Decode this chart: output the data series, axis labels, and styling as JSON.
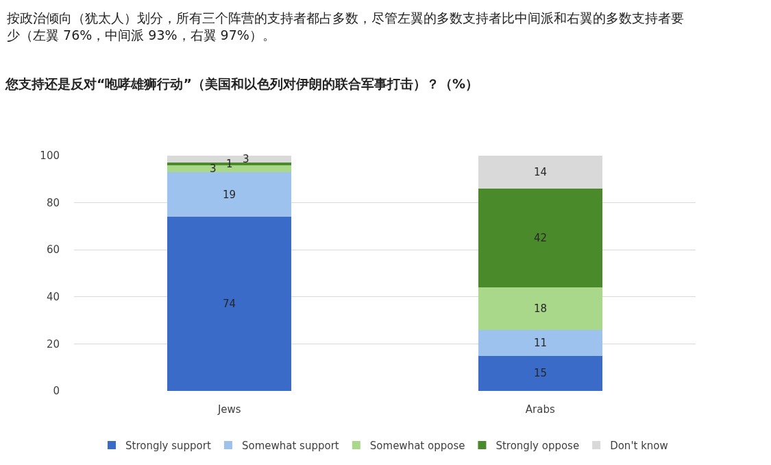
{
  "chart_data": {
    "type": "bar",
    "title": "您支持还是反对“咆哮雄狮行动”（美国和以色列对伊朗的联合军事打击）？（%）",
    "annotations": [
      "按政治倾向（犹太人）划分，所有三个阵营的支持者都占多数，尽管左翼的多数支持者比中间派和右翼的多数支持者要少（左翼 76%，中间派 93%，右翼 97%）。"
    ],
    "categories": [
      "Jews",
      "Arabs"
    ],
    "stacked": true,
    "series": [
      {
        "name": "Strongly support",
        "color": "#3a6bc9",
        "values": [
          74,
          15
        ]
      },
      {
        "name": "Somewhat support",
        "color": "#9ec2ee",
        "values": [
          19,
          11
        ]
      },
      {
        "name": "Somewhat oppose",
        "color": "#a9d88a",
        "values": [
          3,
          18
        ]
      },
      {
        "name": "Strongly oppose",
        "color": "#4b8a2b",
        "values": [
          1,
          42
        ]
      },
      {
        "name": "Don't know",
        "color": "#d9d9d9",
        "values": [
          3,
          14
        ]
      }
    ],
    "ylim": [
      0,
      100
    ],
    "yticks": [
      0,
      20,
      40,
      60,
      80,
      100
    ],
    "grid": "y",
    "legend": "bottom",
    "data_labels": true
  }
}
